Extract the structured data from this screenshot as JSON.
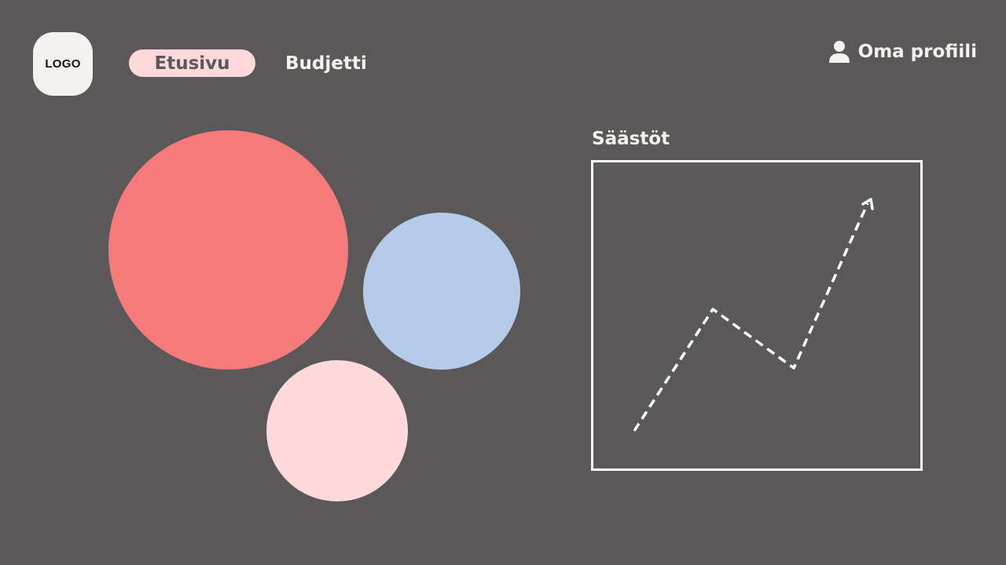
{
  "header": {
    "logo_text": "LOGO",
    "nav": [
      {
        "label": "Etusivu",
        "active": true
      },
      {
        "label": "Budjetti",
        "active": false
      }
    ],
    "profile_label": "Oma profiili",
    "profile_icon": "user-icon"
  },
  "circles": [
    {
      "name": "red",
      "color": "#f47a7b"
    },
    {
      "name": "blue",
      "color": "#b6caea"
    },
    {
      "name": "pink",
      "color": "#fdd9dc"
    }
  ],
  "chart": {
    "title": "Säästöt",
    "line_style": "dashed",
    "trend_icon": "arrow-up-right-icon"
  },
  "colors": {
    "background": "#5a5859",
    "text": "#f5f1ee",
    "accent_pill": "#fdd9dc"
  }
}
